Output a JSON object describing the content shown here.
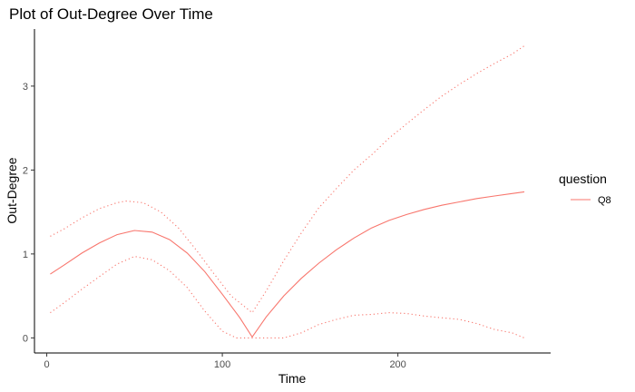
{
  "chart_data": {
    "type": "line",
    "title": "Plot of Out-Degree Over Time",
    "xlabel": "Time",
    "ylabel": "Out-Degree",
    "xlim": [
      -7,
      287
    ],
    "ylim": [
      -0.18,
      3.68
    ],
    "x_ticks": [
      0,
      100,
      200
    ],
    "y_ticks": [
      0,
      1,
      2,
      3
    ],
    "grid": false,
    "legend": {
      "title": "question",
      "position": "right",
      "entries": [
        {
          "label": "Q8",
          "color": "#F8766D"
        }
      ]
    },
    "series": [
      {
        "name": "Q8",
        "style": "solid",
        "color": "#F8766D",
        "x": [
          2,
          10,
          20,
          30,
          40,
          50,
          60,
          70,
          80,
          90,
          100,
          110,
          117,
          125,
          135,
          145,
          155,
          165,
          175,
          185,
          195,
          205,
          215,
          225,
          235,
          245,
          255,
          265,
          272
        ],
        "y": [
          0.76,
          0.87,
          1.01,
          1.13,
          1.23,
          1.28,
          1.26,
          1.17,
          1.01,
          0.79,
          0.52,
          0.24,
          0.01,
          0.25,
          0.5,
          0.71,
          0.89,
          1.05,
          1.19,
          1.31,
          1.4,
          1.47,
          1.53,
          1.58,
          1.62,
          1.66,
          1.69,
          1.72,
          1.74
        ]
      },
      {
        "name": "",
        "style": "dotted",
        "color": "#F8766D",
        "x": [
          2,
          10,
          20,
          30,
          40,
          45,
          55,
          65,
          75,
          85,
          95,
          105,
          117,
          125,
          135,
          145,
          155,
          165,
          175,
          185,
          195,
          205,
          215,
          225,
          235,
          245,
          255,
          265,
          272
        ],
        "y": [
          1.21,
          1.3,
          1.43,
          1.54,
          1.61,
          1.63,
          1.61,
          1.5,
          1.31,
          1.05,
          0.77,
          0.5,
          0.3,
          0.56,
          0.92,
          1.25,
          1.55,
          1.78,
          2.0,
          2.18,
          2.38,
          2.55,
          2.72,
          2.88,
          3.02,
          3.15,
          3.27,
          3.38,
          3.48
        ]
      },
      {
        "name": "",
        "style": "dotted",
        "color": "#F8766D",
        "x": [
          2,
          10,
          20,
          30,
          40,
          50,
          60,
          70,
          80,
          90,
          100,
          108,
          117,
          125,
          135,
          145,
          155,
          165,
          175,
          185,
          195,
          205,
          215,
          225,
          235,
          245,
          255,
          265,
          272
        ],
        "y": [
          0.3,
          0.42,
          0.58,
          0.73,
          0.88,
          0.97,
          0.93,
          0.8,
          0.6,
          0.32,
          0.08,
          0.0,
          0.0,
          0.0,
          0.0,
          0.06,
          0.16,
          0.22,
          0.27,
          0.28,
          0.3,
          0.29,
          0.26,
          0.24,
          0.22,
          0.17,
          0.1,
          0.06,
          0.0
        ]
      }
    ]
  }
}
